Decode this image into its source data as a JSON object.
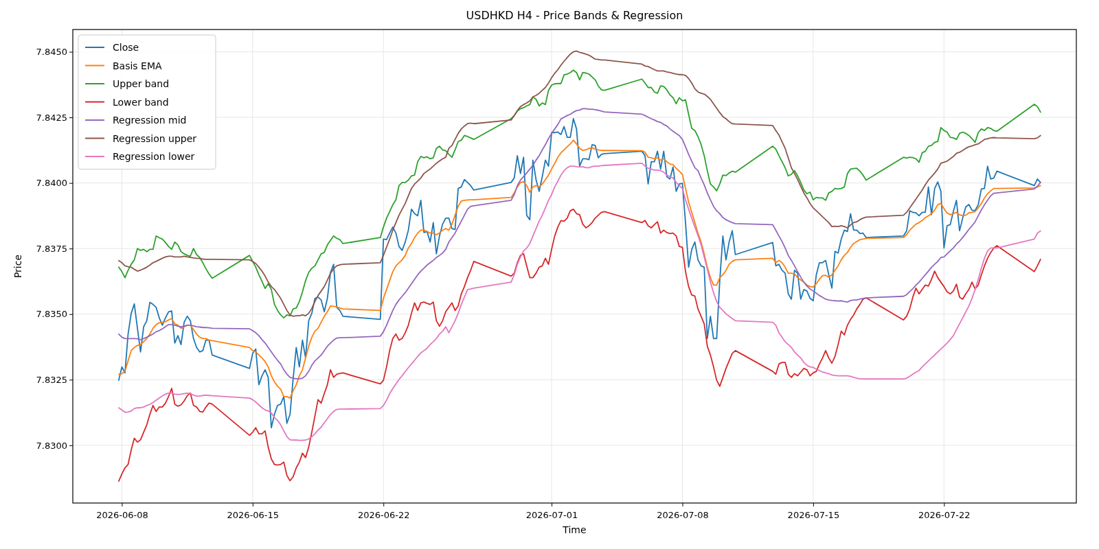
{
  "chart_data": {
    "type": "line",
    "title": "USDHKD H4 - Price Bands & Regression",
    "xlabel": "Time",
    "ylabel": "Price",
    "x": [
      "2026-06-07T20:00",
      "2026-06-08T00:00",
      "2026-06-08T04:00",
      "2026-06-08T08:00",
      "2026-06-08T12:00",
      "2026-06-08T16:00",
      "2026-06-08T20:00",
      "2026-06-09T00:00",
      "2026-06-09T04:00",
      "2026-06-09T08:00",
      "2026-06-09T12:00",
      "2026-06-09T16:00",
      "2026-06-09T20:00",
      "2026-06-10T00:00",
      "2026-06-10T04:00",
      "2026-06-10T08:00",
      "2026-06-10T12:00",
      "2026-06-10T16:00",
      "2026-06-10T20:00",
      "2026-06-11T00:00",
      "2026-06-11T04:00",
      "2026-06-11T08:00",
      "2026-06-11T12:00",
      "2026-06-11T16:00",
      "2026-06-11T20:00",
      "2026-06-12T00:00",
      "2026-06-12T04:00",
      "2026-06-12T08:00",
      "2026-06-12T12:00",
      "2026-06-12T16:00",
      "2026-06-12T20:00",
      "2026-06-14T20:00",
      "2026-06-15T00:00",
      "2026-06-15T04:00",
      "2026-06-15T08:00",
      "2026-06-15T12:00",
      "2026-06-15T16:00",
      "2026-06-15T20:00",
      "2026-06-16T00:00",
      "2026-06-16T04:00",
      "2026-06-16T08:00",
      "2026-06-16T12:00",
      "2026-06-16T16:00",
      "2026-06-16T20:00",
      "2026-06-17T00:00",
      "2026-06-17T04:00",
      "2026-06-17T08:00",
      "2026-06-17T12:00",
      "2026-06-17T16:00",
      "2026-06-17T20:00",
      "2026-06-18T00:00",
      "2026-06-18T04:00",
      "2026-06-18T08:00",
      "2026-06-18T12:00",
      "2026-06-18T16:00",
      "2026-06-18T20:00",
      "2026-06-19T00:00",
      "2026-06-19T04:00",
      "2026-06-19T08:00",
      "2026-06-19T12:00",
      "2026-06-19T16:00",
      "2026-06-19T20:00",
      "2026-06-21T20:00",
      "2026-06-22T00:00",
      "2026-06-22T04:00",
      "2026-06-22T08:00",
      "2026-06-22T12:00",
      "2026-06-22T16:00",
      "2026-06-22T20:00",
      "2026-06-23T00:00",
      "2026-06-23T04:00",
      "2026-06-23T08:00",
      "2026-06-23T12:00",
      "2026-06-23T16:00",
      "2026-06-23T20:00",
      "2026-06-24T00:00",
      "2026-06-24T04:00",
      "2026-06-24T08:00",
      "2026-06-24T12:00",
      "2026-06-24T16:00",
      "2026-06-24T20:00",
      "2026-06-25T00:00",
      "2026-06-25T04:00",
      "2026-06-25T08:00",
      "2026-06-25T12:00",
      "2026-06-25T16:00",
      "2026-06-25T20:00",
      "2026-06-26T00:00",
      "2026-06-26T04:00",
      "2026-06-26T08:00",
      "2026-06-26T12:00",
      "2026-06-26T16:00",
      "2026-06-26T20:00",
      "2026-06-28T20:00",
      "2026-06-29T00:00",
      "2026-06-29T04:00",
      "2026-06-29T08:00",
      "2026-06-29T12:00",
      "2026-06-29T16:00",
      "2026-06-29T20:00",
      "2026-06-30T00:00",
      "2026-06-30T04:00",
      "2026-06-30T08:00",
      "2026-06-30T12:00",
      "2026-06-30T16:00",
      "2026-06-30T20:00",
      "2026-07-01T00:00",
      "2026-07-01T04:00",
      "2026-07-01T08:00",
      "2026-07-01T12:00",
      "2026-07-01T16:00",
      "2026-07-01T20:00",
      "2026-07-02T00:00",
      "2026-07-02T04:00",
      "2026-07-02T08:00",
      "2026-07-02T12:00",
      "2026-07-02T16:00",
      "2026-07-02T20:00",
      "2026-07-03T00:00",
      "2026-07-03T04:00",
      "2026-07-03T08:00",
      "2026-07-03T12:00",
      "2026-07-03T16:00",
      "2026-07-03T20:00",
      "2026-07-05T20:00",
      "2026-07-06T00:00",
      "2026-07-06T04:00",
      "2026-07-06T08:00",
      "2026-07-06T12:00",
      "2026-07-06T16:00",
      "2026-07-06T20:00",
      "2026-07-07T00:00",
      "2026-07-07T04:00",
      "2026-07-07T08:00",
      "2026-07-07T12:00",
      "2026-07-07T16:00",
      "2026-07-07T20:00",
      "2026-07-08T00:00",
      "2026-07-08T04:00",
      "2026-07-08T08:00",
      "2026-07-08T12:00",
      "2026-07-08T16:00",
      "2026-07-08T20:00",
      "2026-07-09T00:00",
      "2026-07-09T04:00",
      "2026-07-09T08:00",
      "2026-07-09T12:00",
      "2026-07-09T16:00",
      "2026-07-09T20:00",
      "2026-07-10T00:00",
      "2026-07-10T04:00",
      "2026-07-10T08:00",
      "2026-07-10T12:00",
      "2026-07-10T16:00",
      "2026-07-10T20:00",
      "2026-07-12T20:00",
      "2026-07-13T00:00",
      "2026-07-13T04:00",
      "2026-07-13T08:00",
      "2026-07-13T12:00",
      "2026-07-13T16:00",
      "2026-07-13T20:00",
      "2026-07-14T00:00",
      "2026-07-14T04:00",
      "2026-07-14T08:00",
      "2026-07-14T12:00",
      "2026-07-14T16:00",
      "2026-07-14T20:00",
      "2026-07-15T00:00",
      "2026-07-15T04:00",
      "2026-07-15T08:00",
      "2026-07-15T12:00",
      "2026-07-15T16:00",
      "2026-07-15T20:00",
      "2026-07-16T00:00",
      "2026-07-16T04:00",
      "2026-07-16T08:00",
      "2026-07-16T12:00",
      "2026-07-16T16:00",
      "2026-07-16T20:00",
      "2026-07-17T00:00",
      "2026-07-17T04:00",
      "2026-07-17T08:00",
      "2026-07-17T12:00",
      "2026-07-17T16:00",
      "2026-07-17T20:00",
      "2026-07-19T20:00",
      "2026-07-20T00:00",
      "2026-07-20T04:00",
      "2026-07-20T08:00",
      "2026-07-20T12:00",
      "2026-07-20T16:00",
      "2026-07-20T20:00",
      "2026-07-21T00:00",
      "2026-07-21T04:00",
      "2026-07-21T08:00",
      "2026-07-21T12:00",
      "2026-07-21T16:00",
      "2026-07-21T20:00",
      "2026-07-22T00:00",
      "2026-07-22T04:00",
      "2026-07-22T08:00",
      "2026-07-22T12:00",
      "2026-07-22T16:00",
      "2026-07-22T20:00",
      "2026-07-23T00:00",
      "2026-07-23T04:00",
      "2026-07-23T08:00",
      "2026-07-23T12:00",
      "2026-07-23T16:00",
      "2026-07-23T20:00",
      "2026-07-24T00:00",
      "2026-07-24T04:00",
      "2026-07-24T08:00",
      "2026-07-24T12:00",
      "2026-07-24T16:00",
      "2026-07-24T20:00",
      "2026-07-26T20:00",
      "2026-07-27T00:00",
      "2026-07-27T04:00"
    ],
    "series": [
      {
        "name": "Close",
        "color": "#1f77b4",
        "values": [
          7.83248,
          7.83299,
          7.83276,
          7.83424,
          7.83503,
          7.83539,
          7.83446,
          7.83356,
          7.83452,
          7.83475,
          7.83545,
          7.83537,
          7.83526,
          7.83486,
          7.83458,
          7.83486,
          7.83509,
          7.83512,
          7.8339,
          7.83418,
          7.83384,
          7.83469,
          7.83492,
          7.83475,
          7.83407,
          7.83373,
          7.83356,
          7.83361,
          7.83401,
          7.83401,
          7.83344,
          7.83293,
          7.8335,
          7.83367,
          7.83231,
          7.83265,
          7.83288,
          7.83259,
          7.83067,
          7.83118,
          7.83152,
          7.83157,
          7.83186,
          7.83084,
          7.83118,
          7.83254,
          7.83373,
          7.83299,
          7.83401,
          7.83333,
          7.83475,
          7.83503,
          7.8356,
          7.83565,
          7.83554,
          7.83509,
          7.8356,
          7.83659,
          7.8369,
          7.83526,
          7.83514,
          7.83492,
          7.8348,
          7.83786,
          7.83784,
          7.83809,
          7.83832,
          7.83809,
          7.83758,
          7.83743,
          7.83775,
          7.8382,
          7.839,
          7.83883,
          7.83875,
          7.83934,
          7.83811,
          7.83815,
          7.83775,
          7.83849,
          7.8373,
          7.83798,
          7.83843,
          7.83866,
          7.83866,
          7.83826,
          7.83823,
          7.83979,
          7.83985,
          7.84013,
          7.84002,
          7.8399,
          7.83973,
          7.84002,
          7.84019,
          7.84104,
          7.84036,
          7.84098,
          7.83877,
          7.8386,
          7.84087,
          7.84013,
          7.83968,
          7.84024,
          7.84087,
          7.84064,
          7.84192,
          7.84192,
          7.84194,
          7.84185,
          7.84215,
          7.84174,
          7.84174,
          7.84245,
          7.84206,
          7.84064,
          7.84092,
          7.84092,
          7.84089,
          7.84146,
          7.84143,
          7.84096,
          7.84109,
          7.84112,
          7.84121,
          7.84104,
          7.83996,
          7.84081,
          7.84081,
          7.84121,
          7.84053,
          7.84121,
          7.84024,
          7.84015,
          7.84061,
          7.83968,
          7.83996,
          7.83999,
          7.83849,
          7.83679,
          7.83747,
          7.83775,
          7.83707,
          7.83684,
          7.83679,
          7.83407,
          7.83492,
          7.83407,
          7.83407,
          7.83628,
          7.83798,
          7.83707,
          7.83775,
          7.83818,
          7.83727,
          7.83773,
          7.83684,
          7.8369,
          7.83667,
          7.83656,
          7.83577,
          7.83557,
          7.83667,
          7.83656,
          7.83557,
          7.83594,
          7.83588,
          7.8356,
          7.83551,
          7.8365,
          7.83696,
          7.83696,
          7.83705,
          7.8365,
          7.83599,
          7.83739,
          7.83733,
          7.83786,
          7.8382,
          7.83815,
          7.83883,
          7.8382,
          7.8382,
          7.83807,
          7.83809,
          7.83792,
          7.83798,
          7.83817,
          7.83894,
          7.83888,
          7.83886,
          7.83875,
          7.83888,
          7.83888,
          7.83985,
          7.83879,
          7.83979,
          7.84004,
          7.83968,
          7.83752,
          7.83837,
          7.83841,
          7.83891,
          7.83934,
          7.83818,
          7.83866,
          7.83909,
          7.83918,
          7.83896,
          7.83895,
          7.83917,
          7.83977,
          7.83979,
          7.84064,
          7.84015,
          7.84019,
          7.84045,
          7.8399,
          7.84015,
          7.84002
        ]
      },
      {
        "name": "Basis EMA",
        "color": "#ff7f0e",
        "values": [
          7.83271,
          7.83273,
          7.83282,
          7.83322,
          7.83361,
          7.83373,
          7.83381,
          7.83384,
          7.83395,
          7.83407,
          7.83424,
          7.83446,
          7.8346,
          7.83467,
          7.83469,
          7.83471,
          7.83478,
          7.83483,
          7.83463,
          7.83458,
          7.83446,
          7.83452,
          7.83458,
          7.83458,
          7.83441,
          7.83424,
          7.83412,
          7.83407,
          7.83407,
          7.83401,
          7.83399,
          7.83373,
          7.83361,
          7.83356,
          7.83344,
          7.83333,
          7.83319,
          7.83299,
          7.83265,
          7.83242,
          7.83225,
          7.83214,
          7.83186,
          7.83186,
          7.8318,
          7.83208,
          7.83231,
          7.83265,
          7.83288,
          7.83333,
          7.83378,
          7.83412,
          7.83435,
          7.83446,
          7.83469,
          7.83492,
          7.83509,
          7.83531,
          7.8353,
          7.83528,
          7.83523,
          7.8352,
          7.83514,
          7.8356,
          7.83594,
          7.83628,
          7.83662,
          7.83684,
          7.83696,
          7.83707,
          7.83724,
          7.83752,
          7.83769,
          7.83792,
          7.83809,
          7.8382,
          7.8382,
          7.83815,
          7.83809,
          7.83809,
          7.83803,
          7.83809,
          7.8382,
          7.83826,
          7.8382,
          7.83843,
          7.83877,
          7.83911,
          7.83931,
          7.83934,
          7.83935,
          7.83936,
          7.83936,
          7.83945,
          7.83962,
          7.83985,
          7.84002,
          7.84005,
          7.8399,
          7.83965,
          7.83985,
          7.8399,
          7.83985,
          7.83996,
          7.84013,
          7.8403,
          7.84053,
          7.84075,
          7.84098,
          7.84115,
          7.84126,
          7.84138,
          7.84149,
          7.84163,
          7.84149,
          7.84132,
          7.84124,
          7.84126,
          7.84132,
          7.84134,
          7.84129,
          7.84126,
          7.84124,
          7.84124,
          7.84123,
          7.84117,
          7.84098,
          7.84096,
          7.84092,
          7.84096,
          7.84087,
          7.84092,
          7.84081,
          7.84072,
          7.8407,
          7.84056,
          7.84045,
          7.84033,
          7.83979,
          7.83928,
          7.83888,
          7.83849,
          7.83809,
          7.83775,
          7.8373,
          7.83679,
          7.83639,
          7.83611,
          7.83611,
          7.83639,
          7.8365,
          7.83667,
          7.8369,
          7.83701,
          7.83707,
          7.83713,
          7.83696,
          7.83705,
          7.83696,
          7.83679,
          7.83656,
          7.83656,
          7.83653,
          7.83639,
          7.8363,
          7.83622,
          7.83611,
          7.83605,
          7.83603,
          7.83616,
          7.83633,
          7.83647,
          7.83648,
          7.83641,
          7.8365,
          7.83667,
          7.83684,
          7.83707,
          7.83724,
          7.83735,
          7.83755,
          7.83769,
          7.83777,
          7.83784,
          7.83786,
          7.83789,
          7.83792,
          7.83803,
          7.8382,
          7.83832,
          7.83843,
          7.83849,
          7.83857,
          7.83868,
          7.83875,
          7.83883,
          7.83897,
          7.83917,
          7.83922,
          7.83902,
          7.83886,
          7.83879,
          7.83883,
          7.83888,
          7.83879,
          7.83875,
          7.83877,
          7.83886,
          7.83888,
          7.83891,
          7.83905,
          7.83922,
          7.83943,
          7.83959,
          7.8397,
          7.83979,
          7.83979,
          7.83981,
          7.83985,
          7.8399
        ]
      },
      {
        "name": "Upper band",
        "color": "#2ca02c",
        "values": [
          7.83679,
          7.83662,
          7.83639,
          7.83667,
          7.8369,
          7.83707,
          7.8375,
          7.83743,
          7.83747,
          7.83738,
          7.83747,
          7.83747,
          7.83798,
          7.83791,
          7.83786,
          7.83773,
          7.83758,
          7.83747,
          7.83775,
          7.83764,
          7.83738,
          7.8373,
          7.83724,
          7.83721,
          7.8375,
          7.83727,
          7.83716,
          7.83696,
          7.83673,
          7.83653,
          7.83637,
          7.83724,
          7.83701,
          7.83679,
          7.8365,
          7.83625,
          7.83598,
          7.83616,
          7.83594,
          7.83537,
          7.83514,
          7.83497,
          7.83486,
          7.83497,
          7.83494,
          7.8352,
          7.83523,
          7.83548,
          7.83585,
          7.83628,
          7.83659,
          7.83675,
          7.83684,
          7.83707,
          7.8373,
          7.83735,
          7.83764,
          7.83781,
          7.83798,
          7.83789,
          7.83784,
          7.83769,
          7.83792,
          7.83832,
          7.83866,
          7.83891,
          7.83917,
          7.83936,
          7.8399,
          7.84002,
          7.84002,
          7.84011,
          7.84027,
          7.8403,
          7.84081,
          7.84101,
          7.84096,
          7.841,
          7.84092,
          7.84096,
          7.84132,
          7.8414,
          7.84126,
          7.84123,
          7.84109,
          7.84098,
          7.84126,
          7.84158,
          7.84163,
          7.84181,
          7.84177,
          7.84172,
          7.84166,
          7.84245,
          7.84257,
          7.84274,
          7.84283,
          7.84287,
          7.84294,
          7.84299,
          7.84328,
          7.84319,
          7.84294,
          7.84305,
          7.84299,
          7.84353,
          7.84373,
          7.84378,
          7.84379,
          7.84379,
          7.84412,
          7.84415,
          7.84421,
          7.8443,
          7.84421,
          7.84393,
          7.84421,
          7.84419,
          7.84415,
          7.84404,
          7.84393,
          7.8437,
          7.84355,
          7.84353,
          7.84396,
          7.84381,
          7.84364,
          7.84364,
          7.84347,
          7.84342,
          7.8437,
          7.84368,
          7.84355,
          7.84336,
          7.84325,
          7.84302,
          7.84325,
          7.84313,
          7.84317,
          7.84262,
          7.84208,
          7.842,
          7.84177,
          7.84147,
          7.84104,
          7.84047,
          7.83996,
          7.83985,
          7.8397,
          7.83996,
          7.8403,
          7.84028,
          7.84038,
          7.84045,
          7.84041,
          7.8414,
          7.84129,
          7.84104,
          7.84081,
          7.84058,
          7.84027,
          7.84033,
          7.84047,
          7.84027,
          7.84002,
          7.83973,
          7.83959,
          7.83965,
          7.83936,
          7.83945,
          7.83943,
          7.83943,
          7.83934,
          7.83962,
          7.83968,
          7.83979,
          7.83977,
          7.83979,
          7.83985,
          7.84036,
          7.84053,
          7.84055,
          7.84056,
          7.84045,
          7.8403,
          7.84011,
          7.84098,
          7.84095,
          7.84098,
          7.84097,
          7.84092,
          7.84079,
          7.84115,
          7.84121,
          7.8414,
          7.84143,
          7.84155,
          7.84158,
          7.84211,
          7.842,
          7.84194,
          7.84174,
          7.84172,
          7.84166,
          7.84189,
          7.84194,
          7.84189,
          7.84181,
          7.84169,
          7.84155,
          7.84192,
          7.84206,
          7.842,
          7.84211,
          7.84208,
          7.842,
          7.84197,
          7.843,
          7.84291,
          7.8427
        ]
      },
      {
        "name": "Lower band",
        "color": "#d62728",
        "values": [
          7.82863,
          7.82891,
          7.82914,
          7.82927,
          7.82982,
          7.83027,
          7.83012,
          7.83021,
          7.8305,
          7.83078,
          7.83118,
          7.83152,
          7.83129,
          7.83146,
          7.83146,
          7.83161,
          7.83186,
          7.83217,
          7.83157,
          7.83149,
          7.83154,
          7.83169,
          7.83189,
          7.83199,
          7.83152,
          7.83146,
          7.83129,
          7.83127,
          7.83146,
          7.83161,
          7.83157,
          7.83038,
          7.8305,
          7.83067,
          7.83044,
          7.83044,
          7.83055,
          7.82993,
          7.82948,
          7.82927,
          7.82925,
          7.82927,
          7.82936,
          7.82885,
          7.82865,
          7.8288,
          7.82914,
          7.82936,
          7.8297,
          7.82953,
          7.82993,
          7.8305,
          7.83112,
          7.83174,
          7.83161,
          7.83197,
          7.83231,
          7.83288,
          7.83259,
          7.83271,
          7.83274,
          7.83276,
          7.83234,
          7.83248,
          7.83299,
          7.83361,
          7.83407,
          7.83424,
          7.83401,
          7.83407,
          7.83429,
          7.83458,
          7.83503,
          7.83543,
          7.83514,
          7.83543,
          7.83546,
          7.83541,
          7.83537,
          7.83546,
          7.83475,
          7.83454,
          7.83475,
          7.83509,
          7.83526,
          7.83543,
          7.83514,
          7.83531,
          7.83577,
          7.83605,
          7.83639,
          7.83667,
          7.83701,
          7.83645,
          7.83656,
          7.83696,
          7.83724,
          7.8373,
          7.83684,
          7.83639,
          7.83639,
          7.83656,
          7.83679,
          7.83684,
          7.83713,
          7.8369,
          7.83747,
          7.83798,
          7.83832,
          7.83857,
          7.83854,
          7.83866,
          7.83894,
          7.839,
          7.83883,
          7.83879,
          7.83843,
          7.83829,
          7.83837,
          7.83849,
          7.83866,
          7.83877,
          7.83888,
          7.83891,
          7.83849,
          7.83857,
          7.83837,
          7.83829,
          7.83841,
          7.83852,
          7.83809,
          7.8382,
          7.83811,
          7.83807,
          7.83809,
          7.83798,
          7.83758,
          7.83755,
          7.83662,
          7.83605,
          7.83573,
          7.83569,
          7.8352,
          7.83492,
          7.83463,
          7.83378,
          7.83344,
          7.83299,
          7.83248,
          7.83225,
          7.83259,
          7.83293,
          7.83322,
          7.8335,
          7.83361,
          7.83282,
          7.83271,
          7.8331,
          7.83316,
          7.83316,
          7.83271,
          7.83259,
          7.83273,
          7.83265,
          7.83279,
          7.83293,
          7.83288,
          7.83265,
          7.83276,
          7.83282,
          7.8331,
          7.83333,
          7.83361,
          7.83333,
          7.83313,
          7.83339,
          7.83384,
          7.83435,
          7.83421,
          7.83458,
          7.8348,
          7.83497,
          7.8352,
          7.83537,
          7.83557,
          7.83562,
          7.83478,
          7.83492,
          7.8352,
          7.83565,
          7.83599,
          7.83577,
          7.83594,
          7.83611,
          7.83607,
          7.83633,
          7.83664,
          7.83639,
          7.83622,
          7.83605,
          7.83585,
          7.83577,
          7.83588,
          7.83614,
          7.83565,
          7.83557,
          7.83577,
          7.83594,
          7.83622,
          7.83596,
          7.83611,
          7.8365,
          7.83684,
          7.83713,
          7.83735,
          7.83752,
          7.83761,
          7.83662,
          7.83684,
          7.83709
        ]
      },
      {
        "name": "Regression mid",
        "color": "#9467bd",
        "values": [
          7.83424,
          7.83412,
          7.83407,
          7.83407,
          7.83407,
          7.83407,
          7.83406,
          7.83403,
          7.83407,
          7.83412,
          7.83418,
          7.83424,
          7.83433,
          7.83437,
          7.83444,
          7.83452,
          7.8346,
          7.8346,
          7.83458,
          7.83454,
          7.83452,
          7.83454,
          7.83458,
          7.83458,
          7.83455,
          7.83452,
          7.83451,
          7.83449,
          7.83449,
          7.83448,
          7.83446,
          7.83444,
          7.83437,
          7.83429,
          7.83418,
          7.83403,
          7.8339,
          7.83373,
          7.83356,
          7.83339,
          7.83324,
          7.8331,
          7.83288,
          7.83271,
          7.83259,
          7.83256,
          7.83254,
          7.83254,
          7.83256,
          7.83265,
          7.83282,
          7.83305,
          7.83322,
          7.83333,
          7.83344,
          7.83361,
          7.83378,
          7.8339,
          7.83401,
          7.83409,
          7.8341,
          7.8341,
          7.83416,
          7.83433,
          7.83458,
          7.83486,
          7.83514,
          7.83537,
          7.83554,
          7.83568,
          7.83582,
          7.83599,
          7.83616,
          7.83633,
          7.8365,
          7.83664,
          7.83675,
          7.83687,
          7.83696,
          7.83705,
          7.83716,
          7.83724,
          7.83733,
          7.83747,
          7.83775,
          7.83792,
          7.83809,
          7.83832,
          7.83854,
          7.83877,
          7.839,
          7.83911,
          7.83913,
          7.83934,
          7.83956,
          7.8399,
          7.84011,
          7.84024,
          7.84038,
          7.84053,
          7.84067,
          7.84087,
          7.84104,
          7.84126,
          7.84146,
          7.84169,
          7.84189,
          7.84206,
          7.84223,
          7.84244,
          7.84251,
          7.84257,
          7.84262,
          7.8427,
          7.84276,
          7.84278,
          7.84283,
          7.84283,
          7.84281,
          7.84281,
          7.84279,
          7.84277,
          7.84274,
          7.84271,
          7.84262,
          7.84257,
          7.84251,
          7.84245,
          7.8424,
          7.84234,
          7.84231,
          7.84223,
          7.84217,
          7.84206,
          7.84197,
          7.84189,
          7.84181,
          7.84166,
          7.84138,
          7.84109,
          7.84083,
          7.84058,
          7.84047,
          7.84019,
          7.83993,
          7.83962,
          7.83936,
          7.83911,
          7.83894,
          7.83883,
          7.83868,
          7.8386,
          7.83854,
          7.83849,
          7.83845,
          7.83841,
          7.8382,
          7.83798,
          7.83777,
          7.83752,
          7.83724,
          7.83705,
          7.83684,
          7.83662,
          7.83641,
          7.83622,
          7.83607,
          7.83596,
          7.83588,
          7.8358,
          7.83571,
          7.83564,
          7.83557,
          7.83554,
          7.83552,
          7.83551,
          7.8355,
          7.83551,
          7.83548,
          7.83546,
          7.83552,
          7.83554,
          7.83554,
          7.83557,
          7.8356,
          7.83562,
          7.83568,
          7.83574,
          7.83586,
          7.83597,
          7.8361,
          7.83622,
          7.83636,
          7.8365,
          7.83664,
          7.83679,
          7.8369,
          7.83701,
          7.83716,
          7.83718,
          7.8373,
          7.83741,
          7.83752,
          7.83767,
          7.83778,
          7.83792,
          7.83807,
          7.83823,
          7.83837,
          7.83852,
          7.83875,
          7.83897,
          7.83917,
          7.83934,
          7.83951,
          7.83961,
          7.83962,
          7.83977,
          7.83988,
          7.84002
        ]
      },
      {
        "name": "Regression upper",
        "color": "#8c564b",
        "values": [
          7.83704,
          7.83696,
          7.83684,
          7.83681,
          7.83679,
          7.83671,
          7.83664,
          7.83668,
          7.83673,
          7.83679,
          7.83687,
          7.83696,
          7.83701,
          7.83707,
          7.83713,
          7.83718,
          7.83721,
          7.83721,
          7.83718,
          7.83718,
          7.83718,
          7.83721,
          7.83718,
          7.83716,
          7.83714,
          7.83713,
          7.83712,
          7.8371,
          7.83709,
          7.83709,
          7.83709,
          7.83707,
          7.83701,
          7.83693,
          7.83679,
          7.83664,
          7.83645,
          7.83622,
          7.83605,
          7.83594,
          7.83577,
          7.8356,
          7.83537,
          7.83514,
          7.83497,
          7.83492,
          7.83494,
          7.83494,
          7.83497,
          7.83494,
          7.83503,
          7.83522,
          7.83548,
          7.83571,
          7.83588,
          7.83605,
          7.8363,
          7.83656,
          7.83673,
          7.83684,
          7.83688,
          7.8369,
          7.83696,
          7.83724,
          7.83755,
          7.83786,
          7.8382,
          7.83849,
          7.83877,
          7.839,
          7.83922,
          7.83951,
          7.83979,
          7.83996,
          7.84007,
          7.84019,
          7.84036,
          7.84045,
          7.84053,
          7.84064,
          7.84075,
          7.84084,
          7.84092,
          7.84098,
          7.84132,
          7.84143,
          7.84166,
          7.84189,
          7.84206,
          7.84217,
          7.84226,
          7.84228,
          7.84226,
          7.8424,
          7.84257,
          7.84276,
          7.84291,
          7.84299,
          7.84305,
          7.84313,
          7.84328,
          7.84334,
          7.84342,
          7.84353,
          7.84364,
          7.84381,
          7.84401,
          7.84418,
          7.84432,
          7.84449,
          7.84464,
          7.84478,
          7.84491,
          7.845,
          7.84503,
          7.84498,
          7.84495,
          7.84491,
          7.84487,
          7.8448,
          7.84472,
          7.84471,
          7.84469,
          7.84469,
          7.84453,
          7.84446,
          7.84444,
          7.84438,
          7.84432,
          7.84427,
          7.84427,
          7.84427,
          7.84423,
          7.84421,
          7.84418,
          7.84415,
          7.84413,
          7.84413,
          7.8441,
          7.84398,
          7.84381,
          7.84359,
          7.84347,
          7.84342,
          7.84339,
          7.8433,
          7.84319,
          7.84302,
          7.84285,
          7.84268,
          7.84253,
          7.84245,
          7.84234,
          7.84226,
          7.84225,
          7.84219,
          7.842,
          7.84183,
          7.84157,
          7.84132,
          7.84095,
          7.84058,
          7.84036,
          7.84013,
          7.83987,
          7.83962,
          7.83943,
          7.83922,
          7.83905,
          7.83894,
          7.83883,
          7.83871,
          7.8386,
          7.83849,
          7.83834,
          7.83835,
          7.83834,
          7.83837,
          7.83834,
          7.83829,
          7.8384,
          7.83849,
          7.83852,
          7.8386,
          7.83866,
          7.8387,
          7.83877,
          7.83888,
          7.83905,
          7.83922,
          7.83939,
          7.83956,
          7.83973,
          7.83993,
          7.84011,
          7.84024,
          7.84038,
          7.84053,
          7.84075,
          7.84079,
          7.84083,
          7.84092,
          7.84101,
          7.84113,
          7.84117,
          7.84124,
          7.84132,
          7.84138,
          7.84141,
          7.84146,
          7.84149,
          7.84157,
          7.84166,
          7.84169,
          7.84172,
          7.84173,
          7.84172,
          7.84169,
          7.84172,
          7.84181
        ]
      },
      {
        "name": "Regression lower",
        "color": "#e377c2",
        "values": [
          7.83143,
          7.83135,
          7.83126,
          7.83127,
          7.83131,
          7.8314,
          7.83143,
          7.83143,
          7.83146,
          7.83152,
          7.83156,
          7.83163,
          7.83172,
          7.8318,
          7.83188,
          7.83195,
          7.83199,
          7.83199,
          7.83195,
          7.83194,
          7.83195,
          7.83197,
          7.83199,
          7.83197,
          7.83191,
          7.83188,
          7.83188,
          7.8319,
          7.83191,
          7.8319,
          7.83189,
          7.8318,
          7.83174,
          7.83165,
          7.83154,
          7.83143,
          7.83135,
          7.83131,
          7.83123,
          7.83106,
          7.83095,
          7.83078,
          7.83055,
          7.83033,
          7.83021,
          7.8302,
          7.8302,
          7.83019,
          7.83019,
          7.8302,
          7.83024,
          7.83033,
          7.83044,
          7.83058,
          7.83069,
          7.83086,
          7.83101,
          7.83118,
          7.83129,
          7.83137,
          7.83138,
          7.83138,
          7.8314,
          7.83152,
          7.83172,
          7.83197,
          7.83216,
          7.83234,
          7.83251,
          7.83265,
          7.83281,
          7.83296,
          7.8331,
          7.83324,
          7.83339,
          7.83352,
          7.83361,
          7.8337,
          7.83384,
          7.83395,
          7.83407,
          7.83424,
          7.83435,
          7.83452,
          7.83429,
          7.83452,
          7.83475,
          7.83503,
          7.83537,
          7.83565,
          7.83594,
          7.83596,
          7.83599,
          7.83622,
          7.8365,
          7.8369,
          7.83718,
          7.83741,
          7.83752,
          7.83769,
          7.83798,
          7.83826,
          7.83854,
          7.83877,
          7.83905,
          7.83934,
          7.83956,
          7.83985,
          7.84007,
          7.8403,
          7.84047,
          7.84058,
          7.84064,
          7.84064,
          7.84062,
          7.84061,
          7.84062,
          7.84058,
          7.84058,
          7.84063,
          7.84064,
          7.84064,
          7.84066,
          7.84067,
          7.84075,
          7.84064,
          7.84056,
          7.84053,
          7.84049,
          7.84049,
          7.84047,
          7.84041,
          7.8403,
          7.84024,
          7.84019,
          7.84002,
          7.8399,
          7.83979,
          7.83936,
          7.839,
          7.83866,
          7.83832,
          7.838,
          7.83764,
          7.83718,
          7.83671,
          7.83622,
          7.83582,
          7.83548,
          7.83526,
          7.83514,
          7.83501,
          7.83492,
          7.83483,
          7.83475,
          7.83469,
          7.83458,
          7.83429,
          7.83412,
          7.83395,
          7.83384,
          7.83373,
          7.83356,
          7.83344,
          7.83333,
          7.83316,
          7.83305,
          7.83299,
          7.83297,
          7.8329,
          7.83285,
          7.83279,
          7.83276,
          7.83273,
          7.83268,
          7.83266,
          7.83265,
          7.83265,
          7.83265,
          7.83265,
          7.83263,
          7.83259,
          7.83256,
          7.83254,
          7.83253,
          7.83253,
          7.83253,
          7.83256,
          7.83263,
          7.83271,
          7.83279,
          7.83285,
          7.83299,
          7.8331,
          7.83322,
          7.83333,
          7.83344,
          7.83356,
          7.83367,
          7.83378,
          7.8339,
          7.83403,
          7.83418,
          7.83441,
          7.83463,
          7.83486,
          7.83509,
          7.83531,
          7.8356,
          7.83594,
          7.83633,
          7.83675,
          7.83713,
          7.83741,
          7.83752,
          7.83752,
          7.83752,
          7.83786,
          7.83809,
          7.83817
        ]
      }
    ],
    "xlim": [
      "2026-06-05T09:00",
      "2026-07-29T02:00"
    ],
    "xticks": [
      "2026-06-08",
      "2026-06-15",
      "2026-06-22",
      "2026-07-01",
      "2026-07-08",
      "2026-07-15",
      "2026-07-22"
    ],
    "ylim": [
      7.8278,
      7.84585
    ],
    "yticks": [
      {
        "value": 7.83,
        "label": "7.8300"
      },
      {
        "value": 7.8325,
        "label": "7.8325"
      },
      {
        "value": 7.835,
        "label": "7.8350"
      },
      {
        "value": 7.8375,
        "label": "7.8375"
      },
      {
        "value": 7.84,
        "label": "7.8400"
      },
      {
        "value": 7.8425,
        "label": "7.8425"
      },
      {
        "value": 7.845,
        "label": "7.8450"
      }
    ],
    "grid": true,
    "legend": "top left"
  }
}
